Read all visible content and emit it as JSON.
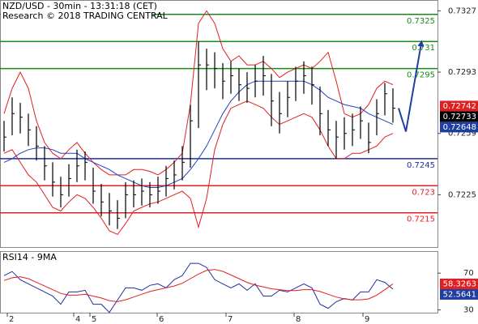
{
  "chart_data": [
    {
      "type": "hlc",
      "title": "NZD/USD - 30min - 13:31:18 (CET)",
      "subtitle": "Research © 2018 TRADING CENTRAL",
      "x": [
        0,
        1,
        2,
        3,
        4,
        5,
        6,
        7,
        8,
        9,
        10,
        11,
        12,
        13,
        14,
        15,
        16,
        17,
        18,
        19,
        20,
        21,
        22,
        23,
        24,
        25,
        26,
        27,
        28,
        29,
        30,
        31,
        32,
        33,
        34,
        35,
        36,
        37,
        38,
        39,
        40,
        41,
        42,
        43,
        44,
        45,
        46,
        47,
        48
      ],
      "high": [
        0.7266,
        0.7279,
        0.7276,
        0.727,
        0.7263,
        0.7252,
        0.7243,
        0.7235,
        0.7242,
        0.725,
        0.7249,
        0.724,
        0.7231,
        0.7226,
        0.7222,
        0.7232,
        0.7233,
        0.7234,
        0.7232,
        0.7235,
        0.7241,
        0.7244,
        0.7252,
        0.7275,
        0.731,
        0.7306,
        0.7304,
        0.7298,
        0.7299,
        0.7295,
        0.7293,
        0.7297,
        0.7302,
        0.7292,
        0.7282,
        0.7288,
        0.7296,
        0.7299,
        0.7296,
        0.7285,
        0.7272,
        0.7266,
        0.7268,
        0.727,
        0.7274,
        0.7265,
        0.7278,
        0.7287,
        0.7284
      ],
      "low": [
        0.7249,
        0.7258,
        0.7259,
        0.7252,
        0.7244,
        0.7233,
        0.7224,
        0.7218,
        0.7224,
        0.7232,
        0.7233,
        0.722,
        0.7213,
        0.7208,
        0.7206,
        0.7212,
        0.7218,
        0.7219,
        0.7218,
        0.722,
        0.7224,
        0.7228,
        0.7233,
        0.724,
        0.7262,
        0.7283,
        0.7284,
        0.7278,
        0.7281,
        0.7277,
        0.7276,
        0.7279,
        0.728,
        0.7263,
        0.7259,
        0.7268,
        0.7277,
        0.7281,
        0.7275,
        0.7258,
        0.7252,
        0.7245,
        0.725,
        0.7252,
        0.7256,
        0.7248,
        0.7258,
        0.7269,
        0.7265
      ],
      "close": [
        0.7257,
        0.727,
        0.7268,
        0.7261,
        0.7252,
        0.7241,
        0.7232,
        0.7225,
        0.7234,
        0.7241,
        0.7243,
        0.7227,
        0.7221,
        0.7216,
        0.7212,
        0.7225,
        0.7225,
        0.7227,
        0.7225,
        0.7227,
        0.7234,
        0.7236,
        0.7243,
        0.7266,
        0.7297,
        0.7297,
        0.7295,
        0.7288,
        0.7291,
        0.7286,
        0.7284,
        0.7288,
        0.7291,
        0.7277,
        0.727,
        0.7279,
        0.7288,
        0.7291,
        0.7286,
        0.727,
        0.7261,
        0.7257,
        0.7259,
        0.7261,
        0.7266,
        0.7254,
        0.727,
        0.7281,
        0.7273
      ],
      "bar_color": "#000000",
      "series": [
        {
          "color": "#e02020",
          "values": [
            0.727,
            0.7284,
            0.7293,
            0.7284,
            0.7266,
            0.7254,
            0.7248,
            0.7245,
            0.725,
            0.7254,
            0.7248,
            0.7243,
            0.7239,
            0.7236,
            0.7236,
            0.7236,
            0.7239,
            0.7239,
            0.7238,
            0.7236,
            0.7239,
            0.7243,
            0.7248,
            0.7275,
            0.732,
            0.7327,
            0.732,
            0.7306,
            0.7299,
            0.7302,
            0.7297,
            0.7297,
            0.7299,
            0.7295,
            0.729,
            0.7293,
            0.7295,
            0.7297,
            0.7295,
            0.7299,
            0.7304,
            0.7288,
            0.727,
            0.7268,
            0.727,
            0.7275,
            0.7284,
            0.7288,
            0.7286
          ]
        },
        {
          "color": "#e02020",
          "values": [
            0.7248,
            0.725,
            0.7243,
            0.7236,
            0.7232,
            0.7225,
            0.7218,
            0.7216,
            0.7221,
            0.7225,
            0.7223,
            0.7218,
            0.7212,
            0.7205,
            0.7203,
            0.7209,
            0.7216,
            0.7218,
            0.722,
            0.7221,
            0.7223,
            0.7225,
            0.7227,
            0.7223,
            0.7207,
            0.7223,
            0.725,
            0.7264,
            0.7273,
            0.7275,
            0.7277,
            0.7275,
            0.7273,
            0.7268,
            0.7264,
            0.7266,
            0.7268,
            0.727,
            0.7268,
            0.7261,
            0.7252,
            0.7245,
            0.7245,
            0.7248,
            0.7248,
            0.725,
            0.7252,
            0.7257,
            0.7259
          ]
        },
        {
          "color": "#2040c0",
          "values": [
            0.7243,
            0.7245,
            0.7248,
            0.725,
            0.7251,
            0.7251,
            0.725,
            0.7248,
            0.7248,
            0.7248,
            0.7245,
            0.7243,
            0.7241,
            0.7239,
            0.7236,
            0.7234,
            0.7232,
            0.723,
            0.7229,
            0.7229,
            0.723,
            0.7232,
            0.7234,
            0.7239,
            0.7245,
            0.7252,
            0.7261,
            0.727,
            0.7277,
            0.7282,
            0.7286,
            0.7288,
            0.7288,
            0.7288,
            0.7288,
            0.7288,
            0.7288,
            0.7288,
            0.7286,
            0.7283,
            0.7279,
            0.7277,
            0.7275,
            0.7274,
            0.7273,
            0.727,
            0.7268,
            0.7266,
            0.7264
          ]
        }
      ],
      "levels": {
        "values": [
          0.7325,
          0.731,
          0.7295,
          0.7245,
          0.723,
          0.7215
        ],
        "colors": [
          "#1a8a1a",
          "#1a8a1a",
          "#1a8a1a",
          "#1f2fa0",
          "#e02020",
          "#e02020"
        ]
      },
      "forecast": {
        "color": "#1f3fa0",
        "x": [
          48.7,
          49.6,
          51.5
        ],
        "values": [
          0.7273,
          0.726,
          0.7309
        ]
      },
      "price_labels": {
        "values": [
          0.72742,
          0.72733,
          0.72648
        ],
        "colors": [
          "#e02020",
          "#000000",
          "#1f3fa0"
        ]
      },
      "xlim": [
        -0.5,
        53.5
      ],
      "ylim": [
        0.7196,
        0.7333
      ],
      "yticks": [
        0.7327,
        0.7293,
        0.7259,
        0.7225
      ]
    },
    {
      "type": "line",
      "title": "RSI14 - 9MA",
      "x": [
        0,
        1,
        2,
        3,
        4,
        5,
        6,
        7,
        8,
        9,
        10,
        11,
        12,
        13,
        14,
        15,
        16,
        17,
        18,
        19,
        20,
        21,
        22,
        23,
        24,
        25,
        26,
        27,
        28,
        29,
        30,
        31,
        32,
        33,
        34,
        35,
        36,
        37,
        38,
        39,
        40,
        41,
        42,
        43,
        44,
        45,
        46,
        47,
        48
      ],
      "series": [
        {
          "color": "#1f2fa0",
          "values": [
            67.3,
            71.8,
            62.9,
            58.4,
            54.0,
            49.6,
            45.1,
            36.2,
            49.6,
            49.6,
            51.3,
            36.2,
            36.2,
            27.3,
            40.7,
            54.0,
            54.0,
            51.3,
            56.7,
            58.4,
            54.0,
            62.9,
            67.3,
            80.7,
            80.7,
            76.2,
            62.9,
            58.4,
            54.0,
            58.4,
            51.3,
            58.4,
            45.1,
            45.1,
            51.3,
            49.6,
            54.0,
            58.4,
            54.0,
            36.2,
            31.8,
            38.9,
            42.4,
            40.7,
            49.6,
            49.6,
            62.9,
            60.0,
            52.6
          ]
        },
        {
          "color": "#e02020",
          "values": [
            62,
            65,
            66,
            64,
            60,
            56,
            52,
            48,
            46,
            46,
            47,
            45,
            43,
            40,
            39,
            41,
            44,
            47,
            50,
            52,
            54,
            56,
            59,
            64,
            69,
            73,
            74,
            72,
            68,
            64,
            60,
            57,
            55,
            53,
            52,
            51,
            51,
            52,
            52,
            50,
            47,
            44,
            42,
            41,
            41,
            42,
            46,
            52,
            58.3
          ]
        }
      ],
      "value_labels": {
        "values": [
          58.3263,
          52.5641
        ],
        "colors": [
          "#e02020",
          "#1f3fa0"
        ]
      },
      "xlim": [
        -0.5,
        53.5
      ],
      "ylim": [
        27,
        94
      ],
      "yticks": [
        70,
        30
      ],
      "xticks": [
        {
          "value": 0.4,
          "label": "2"
        },
        {
          "value": 8.6,
          "label": "4"
        },
        {
          "value": 10.6,
          "label": "5"
        },
        {
          "value": 18.9,
          "label": "6"
        },
        {
          "value": 27.4,
          "label": "7"
        },
        {
          "value": 35.8,
          "label": "8"
        },
        {
          "value": 44.3,
          "label": "9"
        }
      ]
    }
  ]
}
